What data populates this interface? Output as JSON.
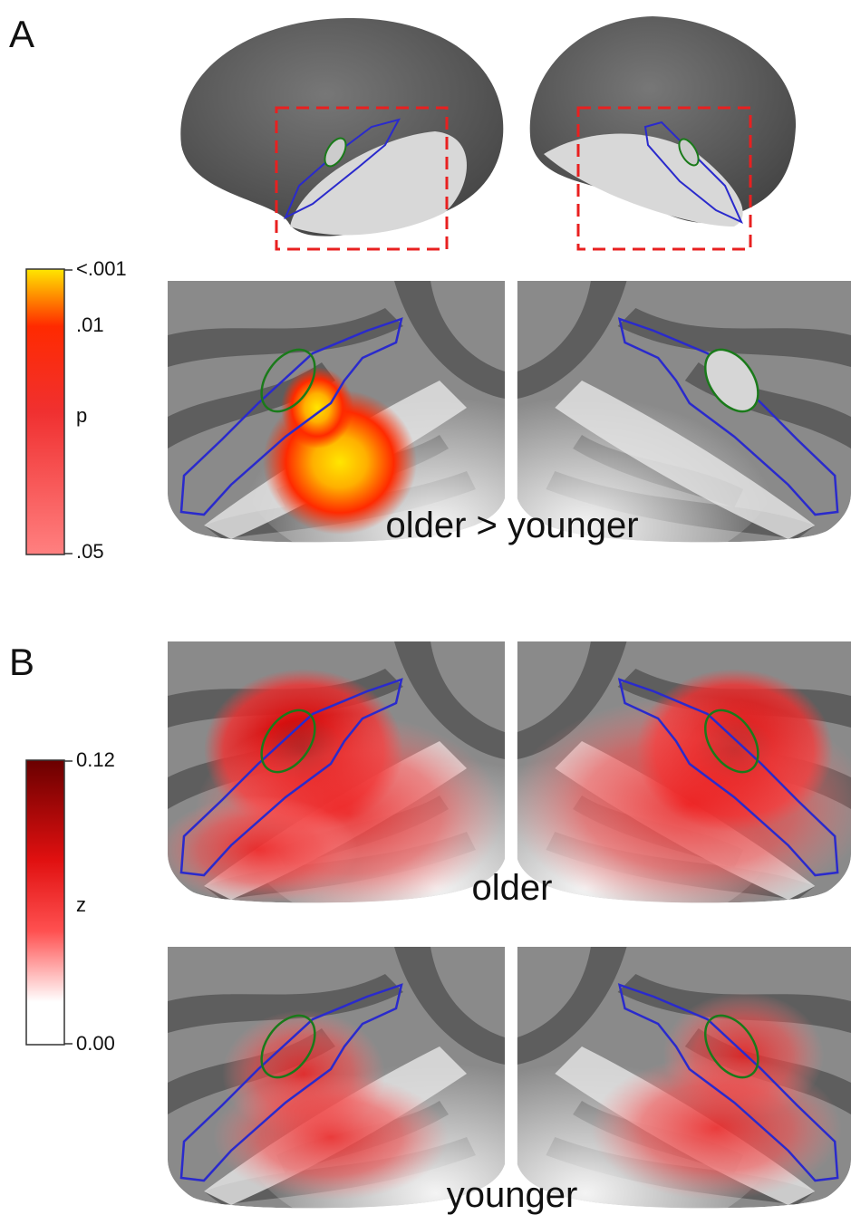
{
  "panel_a": {
    "label": "A",
    "colorbar": {
      "ticks": [
        "<.001",
        ".01",
        ".05"
      ],
      "axis_label": "p"
    },
    "caption": "older > younger"
  },
  "panel_b": {
    "label": "B",
    "colorbar": {
      "ticks": [
        "0.12",
        "0.00"
      ],
      "axis_label": "z"
    },
    "captions": [
      "older",
      "younger"
    ]
  }
}
